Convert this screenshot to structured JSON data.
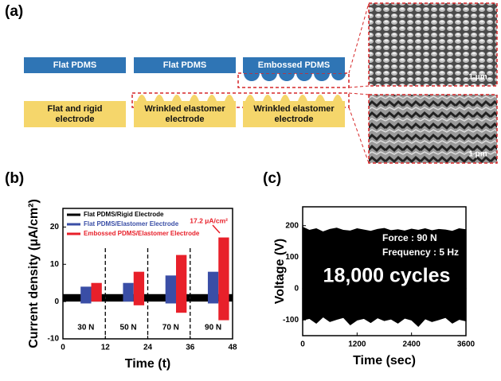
{
  "panel_labels": [
    "(a)",
    "(b)",
    "(c)"
  ],
  "diagram": {
    "top_boxes": [
      "Flat PDMS",
      "Flat PDMS",
      "Embossed PDMS"
    ],
    "bottom_boxes": [
      "Flat and rigid electrode",
      "Wrinkled elastomer electrode",
      "Wrinkled elastomer electrode"
    ],
    "scale_bars": [
      "1 μm",
      "1 μm"
    ]
  },
  "chart_data": [
    {
      "type": "range_bar",
      "xlabel": "Time (t)",
      "ylabel": "Current density (μA/cm²)",
      "categories": [
        "30 N",
        "50 N",
        "70 N",
        "90 N"
      ],
      "series": [
        {
          "name": "Flat PDMS/Rigid Electrode",
          "color": "#000000",
          "values": [
            2,
            2,
            2,
            2
          ],
          "lows": [
            0,
            0,
            0,
            0
          ]
        },
        {
          "name": "Flat PDMS/Elastomer Electrode",
          "color": "#3a4ea6",
          "values": [
            4,
            5,
            7,
            8
          ],
          "lows": [
            -0.5,
            0,
            -0.5,
            -0.5
          ]
        },
        {
          "name": "Embossed PDMS/Elastomer Electrode",
          "color": "#e8202a",
          "values": [
            5,
            8,
            12.5,
            17.2
          ],
          "lows": [
            0,
            -1,
            -3,
            -5
          ]
        }
      ],
      "annotation": "17.2 μA/cm²",
      "dividers": [
        12,
        24,
        36
      ],
      "xlim": [
        0,
        48
      ],
      "xticks": [
        0,
        12,
        24,
        36,
        48
      ],
      "ylim": [
        -10,
        25
      ],
      "yticks": [
        -10,
        0,
        10,
        20
      ]
    },
    {
      "type": "band",
      "xlabel": "Time (sec)",
      "ylabel": "Voltage (V)",
      "annotations": [
        "Force : 90 N",
        "Frequency : 5 Hz",
        "18,000 cycles"
      ],
      "x": [
        0,
        150,
        300,
        450,
        600,
        750,
        900,
        1050,
        1200,
        1350,
        1500,
        1650,
        1800,
        1950,
        2100,
        2250,
        2400,
        2550,
        2700,
        2850,
        3000,
        3150,
        3300,
        3450,
        3600
      ],
      "series": [
        {
          "color": "#000000",
          "values": [
            195,
            185,
            190,
            180,
            188,
            192,
            185,
            183,
            190,
            186,
            182,
            188,
            191,
            184,
            187,
            183,
            189,
            185,
            190,
            184,
            188,
            186,
            182,
            190,
            187
          ]
        },
        {
          "color": "#000000",
          "values": [
            -100,
            -95,
            -110,
            -90,
            -105,
            -98,
            -92,
            -115,
            -100,
            -95,
            -108,
            -93,
            -102,
            -97,
            -110,
            -94,
            -100,
            -120,
            -96,
            -105,
            -99,
            -92,
            -110,
            -98,
            -103
          ]
        }
      ],
      "xlim": [
        0,
        3600
      ],
      "xticks": [
        0,
        1200,
        2400,
        3600
      ],
      "ylim": [
        -150,
        260
      ],
      "yticks": [
        -100,
        0,
        100,
        200
      ]
    }
  ]
}
